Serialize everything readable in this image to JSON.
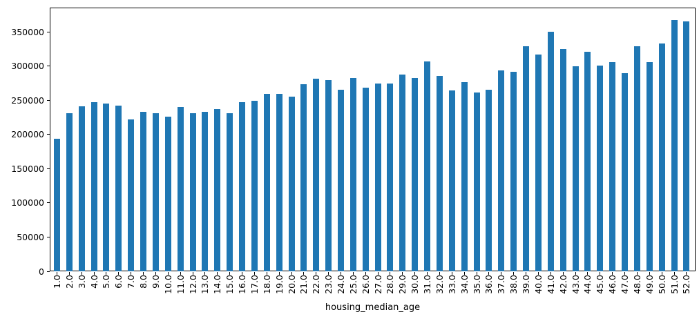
{
  "chart_data": {
    "type": "bar",
    "title": "",
    "xlabel": "housing_median_age",
    "ylabel": "",
    "categories": [
      "1.0",
      "2.0",
      "3.0",
      "4.0",
      "5.0",
      "6.0",
      "7.0",
      "8.0",
      "9.0",
      "10.0",
      "11.0",
      "12.0",
      "13.0",
      "14.0",
      "15.0",
      "16.0",
      "17.0",
      "18.0",
      "19.0",
      "20.0",
      "21.0",
      "22.0",
      "23.0",
      "24.0",
      "25.0",
      "26.0",
      "27.0",
      "28.0",
      "29.0",
      "30.0",
      "31.0",
      "32.0",
      "33.0",
      "34.0",
      "35.0",
      "36.0",
      "37.0",
      "38.0",
      "39.0",
      "40.0",
      "41.0",
      "42.0",
      "43.0",
      "44.0",
      "45.0",
      "46.0",
      "47.0",
      "48.0",
      "49.0",
      "50.0",
      "51.0",
      "52.0"
    ],
    "values": [
      194000,
      230500,
      241000,
      247000,
      245000,
      242000,
      222000,
      232500,
      230500,
      225500,
      240000,
      230500,
      233500,
      237500,
      230500,
      247500,
      249500,
      259500,
      259500,
      255000,
      273000,
      281500,
      279000,
      265000,
      282000,
      268000,
      274000,
      274000,
      287500,
      282500,
      306500,
      285000,
      264500,
      276500,
      261000,
      265500,
      293500,
      292000,
      328500,
      316500,
      349500,
      324500,
      299500,
      321000,
      301000,
      306000,
      289500,
      328500,
      306000,
      333000,
      367500,
      365500
    ],
    "yticks": [
      0,
      50000,
      100000,
      150000,
      200000,
      250000,
      300000,
      350000
    ],
    "ylim": [
      0,
      385900
    ],
    "bar_color": "#1f77b4",
    "grid": false,
    "legend": false
  }
}
